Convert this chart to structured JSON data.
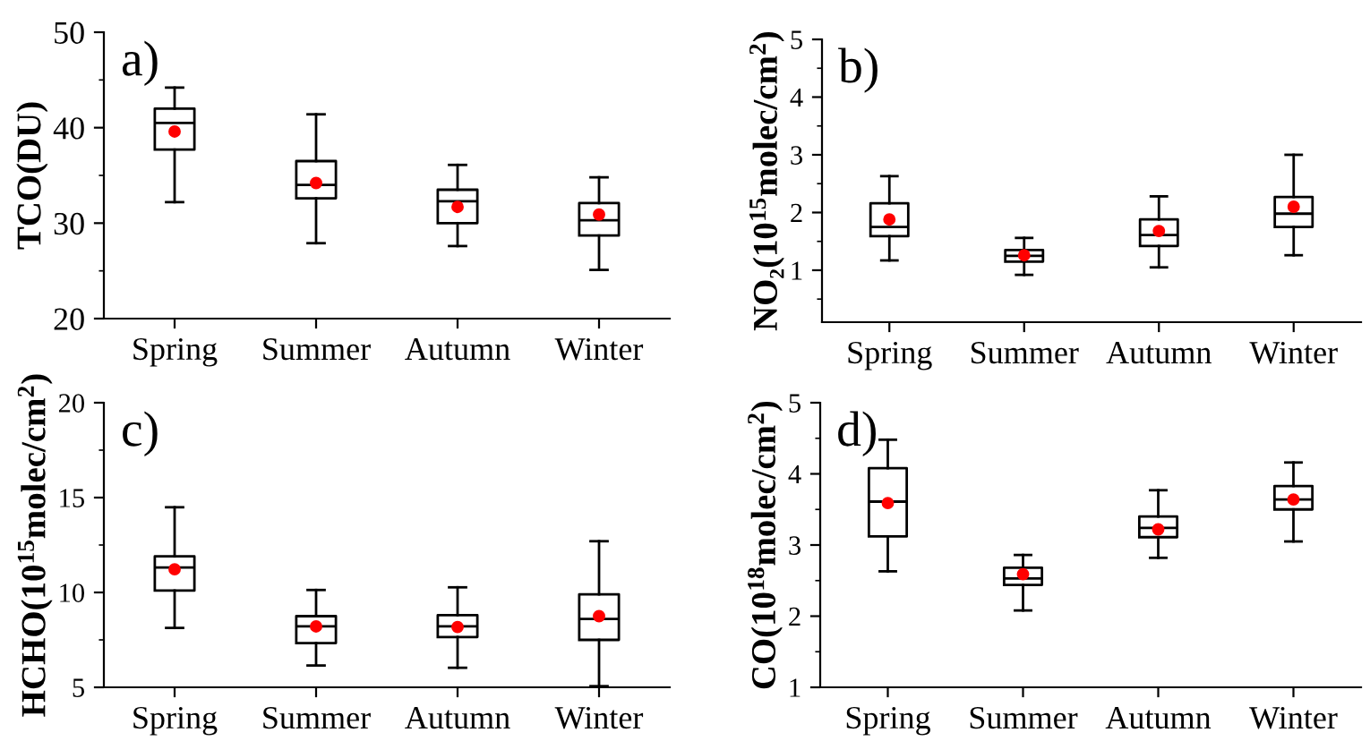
{
  "chart_data": [
    {
      "type": "box",
      "ylabel": "TCO(DU)",
      "annotations": [
        "a)"
      ],
      "categories": [
        "Spring",
        "Summer",
        "Autumn",
        "Winter"
      ],
      "ylim": [
        20,
        50
      ],
      "yticks": [
        20,
        30,
        40,
        50
      ],
      "grid": false,
      "legend": false,
      "boxes": [
        {
          "low": 32.2,
          "q1": 37.7,
          "median": 40.5,
          "q3": 42.0,
          "high": 44.2,
          "mean": 39.6
        },
        {
          "low": 27.9,
          "q1": 32.6,
          "median": 34.0,
          "q3": 36.5,
          "high": 41.4,
          "mean": 34.2
        },
        {
          "low": 27.6,
          "q1": 30.0,
          "median": 32.3,
          "q3": 33.5,
          "high": 36.1,
          "mean": 31.7
        },
        {
          "low": 25.1,
          "q1": 28.7,
          "median": 30.3,
          "q3": 32.1,
          "high": 34.8,
          "mean": 30.9
        }
      ]
    },
    {
      "type": "box",
      "ylabel": "NO₂(10$^{15}$molec/cm$^{2}$)",
      "annotations": [
        "b)"
      ],
      "categories": [
        "Spring",
        "Summer",
        "Autumn",
        "Winter"
      ],
      "ylim": [
        0.1,
        5
      ],
      "yticks": [
        1,
        2,
        3,
        4,
        5
      ],
      "grid": false,
      "legend": false,
      "boxes": [
        {
          "low": 1.17,
          "q1": 1.59,
          "median": 1.75,
          "q3": 2.16,
          "high": 2.63,
          "mean": 1.88
        },
        {
          "low": 0.92,
          "q1": 1.15,
          "median": 1.25,
          "q3": 1.35,
          "high": 1.56,
          "mean": 1.26
        },
        {
          "low": 1.05,
          "q1": 1.42,
          "median": 1.61,
          "q3": 1.88,
          "high": 2.28,
          "mean": 1.68
        },
        {
          "low": 1.26,
          "q1": 1.75,
          "median": 1.98,
          "q3": 2.27,
          "high": 3.0,
          "mean": 2.1
        }
      ]
    },
    {
      "type": "box",
      "ylabel": "HCHO(10$^{15}$molec/cm$^{2}$)",
      "annotations": [
        "c)"
      ],
      "categories": [
        "Spring",
        "Summer",
        "Autumn",
        "Winter"
      ],
      "ylim": [
        5,
        20
      ],
      "yticks": [
        5,
        10,
        15,
        20
      ],
      "grid": false,
      "legend": false,
      "boxes": [
        {
          "low": 8.13,
          "q1": 10.1,
          "median": 11.31,
          "q3": 11.9,
          "high": 14.49,
          "mean": 11.22
        },
        {
          "low": 6.15,
          "q1": 7.33,
          "median": 8.21,
          "q3": 8.75,
          "high": 10.13,
          "mean": 8.21
        },
        {
          "low": 6.03,
          "q1": 7.65,
          "median": 8.21,
          "q3": 8.8,
          "high": 10.27,
          "mean": 8.18
        },
        {
          "low": 5.06,
          "q1": 7.5,
          "median": 8.6,
          "q3": 9.9,
          "high": 12.7,
          "mean": 8.75
        }
      ]
    },
    {
      "type": "box",
      "ylabel": "CO(10$^{18}$molec/cm$^{2}$)",
      "annotations": [
        "d)"
      ],
      "categories": [
        "Spring",
        "Summer",
        "Autumn",
        "Winter"
      ],
      "ylim": [
        1,
        5
      ],
      "yticks": [
        1,
        2,
        3,
        4,
        5
      ],
      "grid": false,
      "legend": false,
      "boxes": [
        {
          "low": 2.63,
          "q1": 3.12,
          "median": 3.61,
          "q3": 4.08,
          "high": 4.48,
          "mean": 3.59
        },
        {
          "low": 2.08,
          "q1": 2.44,
          "median": 2.53,
          "q3": 2.68,
          "high": 2.86,
          "mean": 2.59
        },
        {
          "low": 2.82,
          "q1": 3.11,
          "median": 3.24,
          "q3": 3.4,
          "high": 3.77,
          "mean": 3.22
        },
        {
          "low": 3.05,
          "q1": 3.5,
          "median": 3.64,
          "q3": 3.83,
          "high": 4.16,
          "mean": 3.64
        }
      ]
    }
  ]
}
